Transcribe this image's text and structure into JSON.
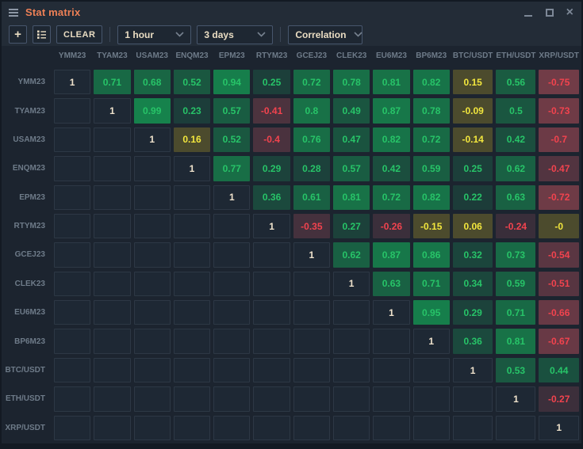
{
  "window": {
    "title": "Stat matrix",
    "controls": {
      "minimize": "minimize",
      "maximize": "maximize",
      "close": "×"
    }
  },
  "toolbar": {
    "add_label": "+",
    "list_icon": "watchlist-icon",
    "clear_label": "CLEAR",
    "timeframe_value": "1 hour",
    "period_value": "3 days",
    "metric_value": "Correlation"
  },
  "colors": {
    "title_accent": "#ee8056",
    "toolbar_text": "#e9dcc2",
    "header_text": "#6e7b89",
    "diag_text": "#efe2cc",
    "green_text": "#27c468",
    "red_text": "#f2434e",
    "yellow_text": "#f2e63d",
    "yellow_bg": "#4c4b2d",
    "cell_base_bg": "#1e2834",
    "green_accent": "#16834b",
    "window_bg": "#232c37"
  },
  "matrix": {
    "metric": "Correlation",
    "symbols": [
      "YMM23",
      "TYAM23",
      "USAM23",
      "ENQM23",
      "EPM23",
      "RTYM23",
      "GCEJ23",
      "CLEK23",
      "EU6M23",
      "BP6M23",
      "BTC/USDT",
      "ETH/USDT",
      "XRP/USDT"
    ],
    "values": [
      [
        "1",
        "0.71",
        "0.68",
        "0.52",
        "0.94",
        "0.25",
        "0.72",
        "0.78",
        "0.81",
        "0.82",
        "0.15",
        "0.56",
        "-0.75"
      ],
      [
        null,
        "1",
        "0.99",
        "0.23",
        "0.57",
        "-0.41",
        "0.8",
        "0.49",
        "0.87",
        "0.78",
        "-0.09",
        "0.5",
        "-0.73"
      ],
      [
        null,
        null,
        "1",
        "0.16",
        "0.52",
        "-0.4",
        "0.76",
        "0.47",
        "0.82",
        "0.72",
        "-0.14",
        "0.42",
        "-0.7"
      ],
      [
        null,
        null,
        null,
        "1",
        "0.77",
        "0.29",
        "0.28",
        "0.57",
        "0.42",
        "0.59",
        "0.25",
        "0.62",
        "-0.47"
      ],
      [
        null,
        null,
        null,
        null,
        "1",
        "0.36",
        "0.61",
        "0.81",
        "0.72",
        "0.82",
        "0.22",
        "0.63",
        "-0.72"
      ],
      [
        null,
        null,
        null,
        null,
        null,
        "1",
        "-0.35",
        "0.27",
        "-0.26",
        "-0.15",
        "0.06",
        "-0.24",
        "-0"
      ],
      [
        null,
        null,
        null,
        null,
        null,
        null,
        "1",
        "0.62",
        "0.87",
        "0.86",
        "0.32",
        "0.73",
        "-0.54"
      ],
      [
        null,
        null,
        null,
        null,
        null,
        null,
        null,
        "1",
        "0.63",
        "0.71",
        "0.34",
        "0.59",
        "-0.51"
      ],
      [
        null,
        null,
        null,
        null,
        null,
        null,
        null,
        null,
        "1",
        "0.95",
        "0.29",
        "0.71",
        "-0.66"
      ],
      [
        null,
        null,
        null,
        null,
        null,
        null,
        null,
        null,
        null,
        "1",
        "0.36",
        "0.81",
        "-0.67"
      ],
      [
        null,
        null,
        null,
        null,
        null,
        null,
        null,
        null,
        null,
        null,
        "1",
        "0.53",
        "0.44"
      ],
      [
        null,
        null,
        null,
        null,
        null,
        null,
        null,
        null,
        null,
        null,
        null,
        "1",
        "-0.27"
      ],
      [
        null,
        null,
        null,
        null,
        null,
        null,
        null,
        null,
        null,
        null,
        null,
        null,
        "1"
      ]
    ]
  }
}
